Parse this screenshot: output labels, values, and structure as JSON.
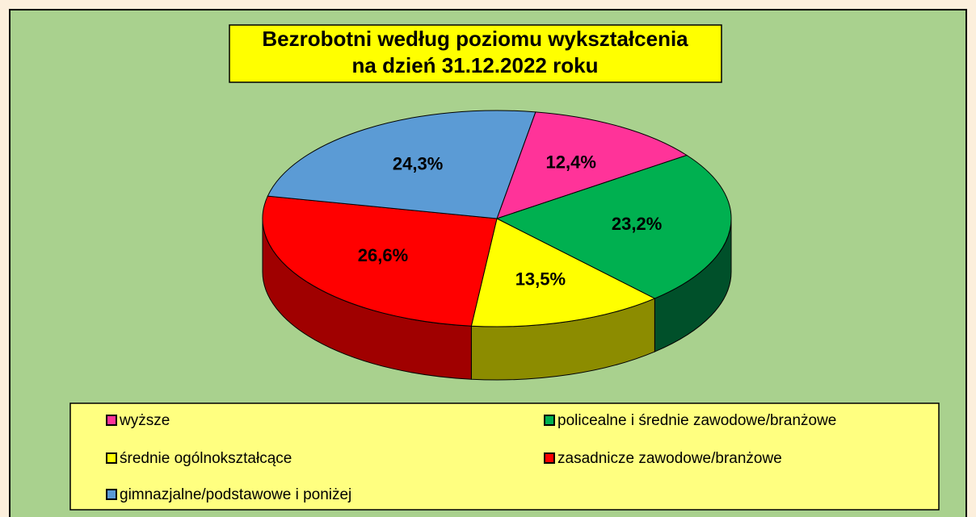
{
  "chart_data": {
    "type": "pie",
    "title": [
      "Bezrobotni według poziomu wykształcenia",
      "na dzień 31.12.2022 roku"
    ],
    "categories": [
      "wyższe",
      "policealne i średnie zawodowe/branżowe",
      "średnie ogólnokształcące",
      "zasadnicze zawodowe/branżowe",
      "gimnazjalne/podstawowe i poniżej"
    ],
    "values": [
      12.4,
      23.2,
      13.5,
      26.6,
      24.3
    ],
    "value_labels": [
      "12,4%",
      "23,2%",
      "13,5%",
      "26,6%",
      "24,3%"
    ],
    "colors": [
      "#ff3399",
      "#00b050",
      "#ffff00",
      "#ff0000",
      "#5b9bd5"
    ],
    "side_colors": [
      "#99205c",
      "#00502a",
      "#8c8c00",
      "#a00000",
      "#35608a"
    ]
  }
}
